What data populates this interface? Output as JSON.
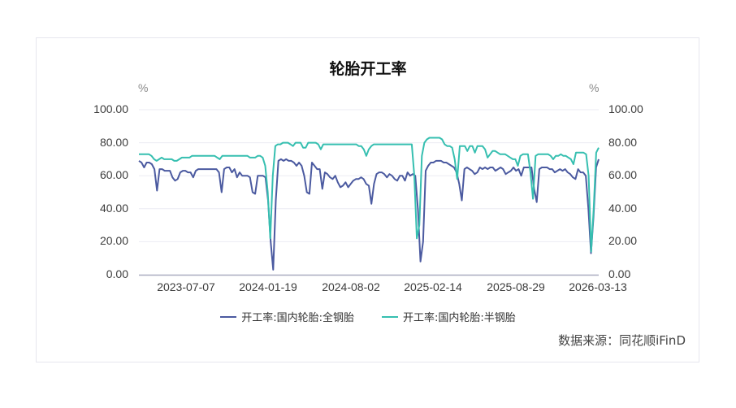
{
  "chart_data": {
    "type": "line",
    "title": "轮胎开工率",
    "ylabel_left": "%",
    "ylabel_right": "%",
    "ylim": [
      0,
      100
    ],
    "yticks": [
      "0.00",
      "20.00",
      "40.00",
      "60.00",
      "80.00",
      "100.00"
    ],
    "xtick_labels": [
      "2023-07-07",
      "2024-01-19",
      "2024-08-02",
      "2025-02-14",
      "2025-08-29",
      "2026-03-13"
    ],
    "grid": true,
    "legend_position": "bottom",
    "series": [
      {
        "name": "开工率:国内轮胎:全钢胎",
        "color": "#4b5aa0",
        "values": [
          69,
          68,
          65,
          68,
          68,
          67,
          64,
          51,
          64,
          64,
          63,
          63,
          63,
          59,
          57,
          58,
          62,
          63,
          63,
          62,
          62,
          59,
          63,
          64,
          64,
          64,
          64,
          64,
          64,
          64,
          64,
          62,
          50,
          64,
          65,
          65,
          62,
          64,
          59,
          62,
          60,
          60,
          60,
          59,
          50,
          49,
          60,
          60,
          60,
          59,
          45,
          20,
          3,
          45,
          69,
          70,
          69,
          70,
          69,
          69,
          68,
          66,
          68,
          66,
          60,
          50,
          49,
          68,
          66,
          64,
          64,
          52,
          62,
          61,
          59,
          58,
          60,
          56,
          53,
          54,
          56,
          53,
          55,
          57,
          58,
          58,
          59,
          58,
          55,
          54,
          43,
          55,
          61,
          62,
          62,
          61,
          59,
          61,
          60,
          58,
          57,
          60,
          60,
          57,
          62,
          60,
          61,
          60,
          40,
          8,
          20,
          63,
          66,
          68,
          68,
          69,
          69,
          69,
          68,
          68,
          67,
          66,
          65,
          62,
          55,
          45,
          64,
          65,
          64,
          63,
          61,
          62,
          65,
          64,
          65,
          64,
          65,
          65,
          63,
          64,
          65,
          64,
          61,
          62,
          63,
          65,
          63,
          64,
          60,
          65,
          65,
          65,
          65,
          52,
          44,
          64,
          65,
          65,
          65,
          64,
          64,
          62,
          63,
          64,
          63,
          64,
          62,
          61,
          59,
          58,
          64,
          62,
          62,
          60,
          40,
          13,
          35,
          65,
          70
        ]
      },
      {
        "name": "开工率:国内轮胎:半钢胎",
        "color": "#36bfb0",
        "values": [
          73,
          73,
          73,
          73,
          73,
          72,
          70,
          69,
          70,
          71,
          70,
          70,
          70,
          70,
          69,
          69,
          70,
          71,
          71,
          71,
          71,
          72,
          72,
          72,
          72,
          72,
          72,
          72,
          72,
          72,
          72,
          71,
          70,
          72,
          72,
          72,
          72,
          72,
          72,
          72,
          72,
          72,
          72,
          72,
          71,
          71,
          71,
          72,
          72,
          71,
          66,
          50,
          22,
          60,
          78,
          79,
          79,
          80,
          80,
          80,
          79,
          78,
          80,
          80,
          80,
          77,
          77,
          80,
          80,
          80,
          80,
          79,
          76,
          79,
          79,
          79,
          79,
          79,
          79,
          79,
          79,
          79,
          79,
          79,
          79,
          79,
          79,
          78,
          78,
          76,
          72,
          76,
          78,
          79,
          79,
          79,
          79,
          79,
          79,
          79,
          79,
          79,
          79,
          79,
          79,
          79,
          79,
          79,
          79,
          60,
          22,
          30,
          72,
          80,
          82,
          83,
          83,
          83,
          83,
          83,
          82,
          79,
          78,
          78,
          77,
          70,
          58,
          78,
          78,
          78,
          75,
          78,
          78,
          74,
          78,
          78,
          78,
          76,
          71,
          73,
          75,
          75,
          74,
          73,
          73,
          73,
          72,
          71,
          70,
          70,
          66,
          72,
          73,
          73,
          73,
          62,
          46,
          72,
          73,
          73,
          73,
          73,
          73,
          72,
          70,
          72,
          72,
          73,
          72,
          72,
          71,
          70,
          67,
          74,
          74,
          74,
          74,
          73,
          60,
          14,
          40,
          74,
          77
        ]
      }
    ]
  },
  "legend": {
    "items": [
      {
        "label": "开工率:国内轮胎:全钢胎",
        "color": "#4b5aa0"
      },
      {
        "label": "开工率:国内轮胎:半钢胎",
        "color": "#36bfb0"
      }
    ]
  },
  "source": "数据来源：同花顺iFinD"
}
